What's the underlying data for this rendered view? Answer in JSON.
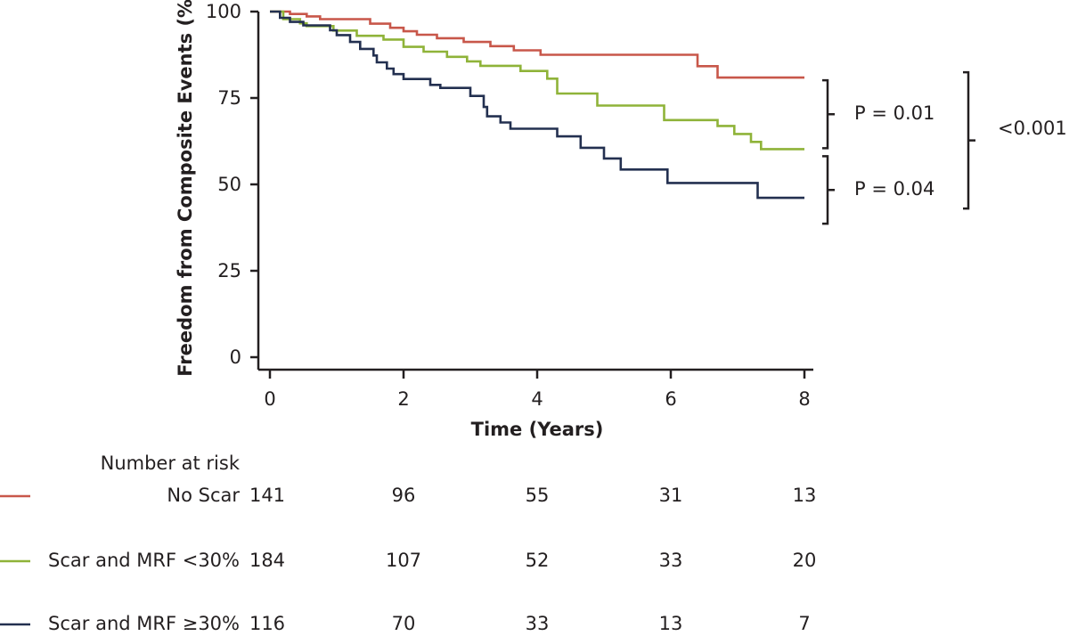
{
  "chart_data": {
    "type": "line",
    "xlabel": "Time (Years)",
    "ylabel": "Freedom from Composite Events (%)",
    "xlim": [
      0,
      8
    ],
    "ylim": [
      0,
      100
    ],
    "x_ticks": [
      "0",
      "2",
      "4",
      "6",
      "8"
    ],
    "y_ticks": [
      "0",
      "25",
      "50",
      "75",
      "100"
    ],
    "grid": false,
    "series": [
      {
        "name": "No Scar",
        "color": "#c8574a",
        "points": [
          [
            0,
            100
          ],
          [
            0.3,
            100
          ],
          [
            0.3,
            99.3
          ],
          [
            0.55,
            99.3
          ],
          [
            0.55,
            98.6
          ],
          [
            0.75,
            98.6
          ],
          [
            0.75,
            97.8
          ],
          [
            1.5,
            97.8
          ],
          [
            1.5,
            96.5
          ],
          [
            1.8,
            96.5
          ],
          [
            1.8,
            95.3
          ],
          [
            2.0,
            95.3
          ],
          [
            2.0,
            94.3
          ],
          [
            2.2,
            94.3
          ],
          [
            2.2,
            93.3
          ],
          [
            2.5,
            93.3
          ],
          [
            2.5,
            92.3
          ],
          [
            2.9,
            92.3
          ],
          [
            2.9,
            91.2
          ],
          [
            3.3,
            91.2
          ],
          [
            3.3,
            90.0
          ],
          [
            3.65,
            90.0
          ],
          [
            3.65,
            88.8
          ],
          [
            4.05,
            88.8
          ],
          [
            4.05,
            87.5
          ],
          [
            6.4,
            87.5
          ],
          [
            6.4,
            84.2
          ],
          [
            6.7,
            84.2
          ],
          [
            6.7,
            80.9
          ],
          [
            8,
            80.9
          ]
        ]
      },
      {
        "name": "Scar and MRF <30%",
        "color": "#8fb339",
        "points": [
          [
            0,
            100
          ],
          [
            0.2,
            100
          ],
          [
            0.2,
            97.8
          ],
          [
            0.45,
            97.8
          ],
          [
            0.45,
            96.6
          ],
          [
            0.55,
            96.6
          ],
          [
            0.55,
            95.8
          ],
          [
            0.95,
            95.8
          ],
          [
            0.95,
            94.5
          ],
          [
            1.3,
            94.5
          ],
          [
            1.3,
            93.0
          ],
          [
            1.7,
            93.0
          ],
          [
            1.7,
            91.9
          ],
          [
            2.0,
            91.9
          ],
          [
            2.0,
            89.8
          ],
          [
            2.3,
            89.8
          ],
          [
            2.3,
            88.4
          ],
          [
            2.65,
            88.4
          ],
          [
            2.65,
            86.9
          ],
          [
            2.95,
            86.9
          ],
          [
            2.95,
            85.6
          ],
          [
            3.15,
            85.6
          ],
          [
            3.15,
            84.3
          ],
          [
            3.75,
            84.3
          ],
          [
            3.75,
            82.8
          ],
          [
            4.15,
            82.8
          ],
          [
            4.15,
            80.6
          ],
          [
            4.3,
            80.6
          ],
          [
            4.3,
            76.3
          ],
          [
            4.9,
            76.3
          ],
          [
            4.9,
            72.8
          ],
          [
            5.9,
            72.8
          ],
          [
            5.9,
            68.6
          ],
          [
            6.7,
            68.6
          ],
          [
            6.7,
            66.9
          ],
          [
            6.95,
            66.9
          ],
          [
            6.95,
            64.6
          ],
          [
            7.2,
            64.6
          ],
          [
            7.2,
            62.3
          ],
          [
            7.35,
            62.3
          ],
          [
            7.35,
            60.2
          ],
          [
            8,
            60.2
          ]
        ]
      },
      {
        "name": "Scar and MRF ≥30%",
        "color": "#233050",
        "points": [
          [
            0,
            100
          ],
          [
            0.15,
            100
          ],
          [
            0.15,
            98.2
          ],
          [
            0.3,
            98.2
          ],
          [
            0.3,
            97.0
          ],
          [
            0.5,
            97.0
          ],
          [
            0.5,
            96.0
          ],
          [
            0.9,
            96.0
          ],
          [
            0.9,
            94.6
          ],
          [
            1.0,
            94.6
          ],
          [
            1.0,
            93.2
          ],
          [
            1.2,
            93.2
          ],
          [
            1.2,
            91.2
          ],
          [
            1.35,
            91.2
          ],
          [
            1.35,
            89.2
          ],
          [
            1.55,
            89.2
          ],
          [
            1.55,
            87.3
          ],
          [
            1.6,
            87.3
          ],
          [
            1.6,
            85.3
          ],
          [
            1.75,
            85.3
          ],
          [
            1.75,
            83.5
          ],
          [
            1.85,
            83.5
          ],
          [
            1.85,
            81.9
          ],
          [
            2.0,
            81.9
          ],
          [
            2.0,
            80.5
          ],
          [
            2.4,
            80.5
          ],
          [
            2.4,
            78.8
          ],
          [
            2.55,
            78.8
          ],
          [
            2.55,
            77.9
          ],
          [
            3.0,
            77.9
          ],
          [
            3.0,
            75.6
          ],
          [
            3.2,
            75.6
          ],
          [
            3.2,
            72.4
          ],
          [
            3.25,
            72.4
          ],
          [
            3.25,
            69.7
          ],
          [
            3.45,
            69.7
          ],
          [
            3.45,
            67.9
          ],
          [
            3.6,
            67.9
          ],
          [
            3.6,
            66.1
          ],
          [
            4.3,
            66.1
          ],
          [
            4.3,
            63.9
          ],
          [
            4.65,
            63.9
          ],
          [
            4.65,
            60.6
          ],
          [
            5.0,
            60.6
          ],
          [
            5.0,
            57.5
          ],
          [
            5.25,
            57.5
          ],
          [
            5.25,
            54.3
          ],
          [
            5.95,
            54.3
          ],
          [
            5.95,
            50.4
          ],
          [
            6.65,
            50.4
          ],
          [
            6.65,
            50.4
          ],
          [
            7.3,
            50.4
          ],
          [
            7.3,
            46.1
          ],
          [
            8,
            46.1
          ]
        ]
      }
    ],
    "comparisons": {
      "p_upper": "P = 0.01",
      "p_lower": "P = 0.04",
      "p_overall": "<0.001"
    },
    "risk_table": {
      "title": "Number at risk",
      "times": [
        0,
        2,
        4,
        6,
        8
      ],
      "rows": [
        {
          "label": "No Scar",
          "color": "#c8574a",
          "counts": [
            "141",
            "96",
            "55",
            "31",
            "13"
          ]
        },
        {
          "label": "Scar and MRF <30%",
          "color": "#8fb339",
          "counts": [
            "184",
            "107",
            "52",
            "33",
            "20"
          ]
        },
        {
          "label": "Scar and MRF ≥30%",
          "color": "#233050",
          "counts": [
            "116",
            "70",
            "33",
            "13",
            "7"
          ]
        }
      ]
    }
  }
}
